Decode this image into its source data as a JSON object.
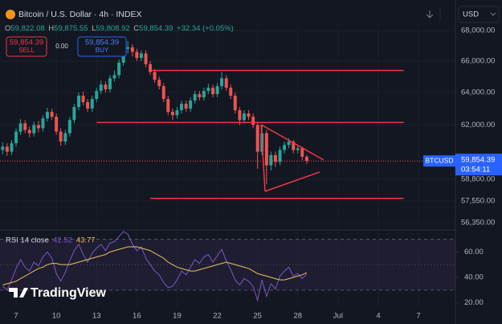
{
  "header": {
    "title": "Bitcoin / U.S. Dollar · 4h · INDEX",
    "ohlc": [
      {
        "key": "O",
        "value": "59,822.08"
      },
      {
        "key": "H",
        "value": "59,875.55"
      },
      {
        "key": "L",
        "value": "59,808.92"
      },
      {
        "key": "C",
        "value": "59,854.39"
      }
    ],
    "change": "+32.34 (+0.05%)",
    "sell": {
      "price": "59,854.39",
      "label": "SELL"
    },
    "spread": "0.00",
    "buy": {
      "price": "59,854.39",
      "label": "BUY"
    },
    "currency": "USD",
    "logo": "TradingView"
  },
  "chart_data": [
    {
      "type": "candlestick",
      "log": true,
      "grid": true,
      "up_color": "#26a69a",
      "down_color": "#ef5350",
      "line_color": "#f23645",
      "xlim": [
        5.8,
        39.75
      ],
      "ylim": [
        55990,
        68540
      ],
      "xticks": [
        7,
        10,
        13,
        16,
        19,
        22,
        25,
        28,
        {
          "value": 31,
          "label": "Jul"
        },
        {
          "value": 34,
          "label": "4"
        },
        {
          "value": 37,
          "label": "7"
        }
      ],
      "yticks": [
        {
          "value": 68000,
          "label": "68,000.00"
        },
        {
          "value": 66000,
          "label": "66,000.00"
        },
        {
          "value": 64000,
          "label": "64,000.00"
        },
        {
          "value": 62000,
          "label": "62,000.00"
        },
        {
          "value": 58800,
          "label": "58,800.00"
        },
        {
          "value": 57550,
          "label": "57,550.00"
        },
        {
          "value": 56350,
          "label": "56,350.00"
        }
      ],
      "x": [
        6,
        6.33,
        6.67,
        7,
        7.33,
        7.67,
        8,
        8.33,
        8.67,
        9,
        9.33,
        9.67,
        10,
        10.33,
        10.67,
        11,
        11.33,
        11.67,
        12,
        12.33,
        12.67,
        13,
        13.33,
        13.67,
        14,
        14.33,
        14.67,
        15,
        15.33,
        15.67,
        16,
        16.33,
        16.67,
        17,
        17.33,
        17.67,
        18,
        18.33,
        18.67,
        19,
        19.33,
        19.67,
        20,
        20.33,
        20.67,
        21,
        21.33,
        21.67,
        22,
        22.33,
        22.67,
        23,
        23.33,
        23.67,
        24,
        24.33,
        24.67,
        25,
        25.33,
        25.67,
        26,
        26.33,
        26.67,
        27,
        27.33,
        27.67,
        28,
        28.33,
        28.67
      ],
      "open": [
        60500,
        60700,
        60400,
        60900,
        61600,
        62100,
        61700,
        61500,
        62000,
        61800,
        62400,
        62800,
        62500,
        61600,
        61000,
        61500,
        62300,
        63100,
        63800,
        63400,
        63000,
        63600,
        64100,
        64500,
        64200,
        64900,
        65100,
        65900,
        66800,
        66900,
        66600,
        66200,
        66500,
        65800,
        65300,
        64800,
        64400,
        63600,
        62800,
        62600,
        62900,
        63300,
        63000,
        63500,
        63900,
        63700,
        64100,
        64300,
        63900,
        64400,
        64900,
        64300,
        63800,
        62900,
        62300,
        62700,
        62500,
        62000,
        60400,
        61500,
        59600,
        60200,
        59800,
        60500,
        60800,
        61000,
        60500,
        60600,
        60100
      ],
      "high": [
        60950,
        60900,
        61100,
        61800,
        62350,
        62300,
        61900,
        62200,
        62250,
        62600,
        63050,
        63000,
        62700,
        61800,
        61700,
        62500,
        63300,
        64000,
        64050,
        63600,
        63800,
        64300,
        64750,
        64700,
        65100,
        65400,
        66100,
        67000,
        67300,
        67100,
        66800,
        66700,
        66700,
        66000,
        65500,
        65000,
        64600,
        63800,
        63000,
        63100,
        63500,
        63500,
        63700,
        64100,
        64100,
        64300,
        64550,
        64500,
        64600,
        65300,
        65100,
        64500,
        64000,
        63100,
        62900,
        62900,
        62700,
        62100,
        62000,
        61700,
        60400,
        60400,
        60700,
        61000,
        61200,
        61100,
        60800,
        60700,
        60200
      ],
      "low": [
        60250,
        60150,
        60200,
        60700,
        61400,
        61500,
        61250,
        61300,
        61550,
        61600,
        62200,
        62300,
        61400,
        60750,
        60800,
        61300,
        62100,
        62900,
        63200,
        62800,
        62800,
        63400,
        63900,
        64000,
        64000,
        64700,
        64900,
        65700,
        66500,
        66300,
        66000,
        66000,
        65600,
        65100,
        64600,
        64200,
        63400,
        62600,
        62300,
        62400,
        62700,
        62800,
        62800,
        63300,
        63500,
        63500,
        63900,
        63700,
        63700,
        64200,
        64100,
        63600,
        62700,
        62000,
        62100,
        62300,
        61800,
        59400,
        60200,
        58500,
        59300,
        59500,
        59600,
        60300,
        60600,
        60300,
        60300,
        59900,
        59700
      ],
      "close": [
        60700,
        60400,
        60900,
        61600,
        62100,
        61700,
        61500,
        62000,
        61800,
        62400,
        62800,
        62500,
        61600,
        61000,
        61500,
        62300,
        63100,
        63800,
        63400,
        63000,
        63600,
        64100,
        64500,
        64200,
        64900,
        65100,
        65900,
        66800,
        66900,
        66600,
        66200,
        66500,
        65800,
        65300,
        64800,
        64400,
        63600,
        62800,
        62600,
        62900,
        63300,
        63000,
        63500,
        63900,
        63700,
        64100,
        64300,
        63900,
        64400,
        64900,
        64300,
        63800,
        62900,
        62300,
        62700,
        62500,
        62000,
        60400,
        61500,
        59600,
        60200,
        59800,
        60500,
        60800,
        61000,
        60500,
        60600,
        60100,
        59854.39
      ],
      "trendlines": [
        {
          "x": [
            17.1,
            35.9
          ],
          "y": [
            65400,
            65400
          ]
        },
        {
          "x": [
            13.0,
            35.9
          ],
          "y": [
            62150,
            62150
          ]
        },
        {
          "x": [
            17.0,
            35.9
          ],
          "y": [
            57700,
            57700
          ]
        },
        {
          "x": [
            25.26,
            29.93
          ],
          "y": [
            62020,
            59910
          ]
        },
        {
          "x": [
            25.56,
            29.63
          ],
          "y": [
            58100,
            59210
          ]
        },
        {
          "x": [
            25.26,
            25.56
          ],
          "y": [
            62020,
            58100
          ]
        }
      ],
      "symbol": "BTCUSD",
      "last": {
        "value": 59854.39,
        "label": "59,854.39"
      },
      "countdown": "03:54:11"
    },
    {
      "type": "line",
      "title": "RSI 14 close",
      "xlim": [
        5.8,
        39.75
      ],
      "ylim": [
        16,
        76
      ],
      "yticks": [
        {
          "value": 60,
          "label": "60.00"
        },
        {
          "value": 40,
          "label": "40.00"
        },
        {
          "value": 20,
          "label": "20.00"
        }
      ],
      "levels": [
        70,
        50,
        30
      ],
      "band_color": "#7e57c2",
      "x": [
        6,
        6.33,
        6.67,
        7,
        7.33,
        7.67,
        8,
        8.33,
        8.67,
        9,
        9.33,
        9.67,
        10,
        10.33,
        10.67,
        11,
        11.33,
        11.67,
        12,
        12.33,
        12.67,
        13,
        13.33,
        13.67,
        14,
        14.33,
        14.67,
        15,
        15.33,
        15.67,
        16,
        16.33,
        16.67,
        17,
        17.33,
        17.67,
        18,
        18.33,
        18.67,
        19,
        19.33,
        19.67,
        20,
        20.33,
        20.67,
        21,
        21.33,
        21.67,
        22,
        22.33,
        22.67,
        23,
        23.33,
        23.67,
        24,
        24.33,
        24.67,
        25,
        25.33,
        25.67,
        26,
        26.33,
        26.67,
        27,
        27.33,
        27.67,
        28,
        28.33,
        28.67
      ],
      "series": [
        {
          "color": "#7e57c2",
          "values": [
            33,
            30,
            38,
            47,
            54,
            48,
            45,
            52,
            49,
            56,
            60,
            55,
            43,
            37,
            44,
            53,
            61,
            66,
            58,
            52,
            59,
            63,
            66,
            61,
            67,
            68,
            72,
            76,
            74,
            66,
            61,
            64,
            55,
            50,
            45,
            42,
            36,
            32,
            33,
            38,
            45,
            42,
            48,
            54,
            51,
            56,
            58,
            52,
            57,
            62,
            53,
            46,
            38,
            34,
            39,
            37,
            33,
            22,
            38,
            25,
            35,
            31,
            41,
            45,
            48,
            41,
            43,
            39,
            42.52
          ]
        },
        {
          "color": "#f0c05a",
          "values": [
            34,
            35,
            36,
            37,
            39,
            41,
            43,
            45,
            47,
            48,
            50,
            51,
            51,
            50,
            50,
            50,
            51,
            52,
            53,
            54,
            55,
            56,
            57,
            58,
            60,
            61,
            62,
            63,
            64,
            64,
            64,
            63,
            62,
            61,
            59,
            57,
            55,
            52,
            50,
            48,
            47,
            46,
            45,
            45,
            46,
            47,
            48,
            49,
            50,
            51,
            52,
            51,
            50,
            49,
            48,
            47,
            45,
            43,
            42,
            41,
            40,
            39,
            38,
            38,
            39,
            40,
            41,
            42,
            43.77
          ]
        }
      ]
    }
  ]
}
